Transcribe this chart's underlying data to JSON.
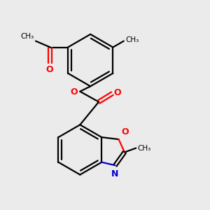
{
  "bg_color": "#ebebeb",
  "bond_color": "#000000",
  "o_color": "#ff0000",
  "n_color": "#0000cc",
  "line_width": 1.6,
  "figsize": [
    3.0,
    3.0
  ],
  "dpi": 100,
  "xlim": [
    0,
    10
  ],
  "ylim": [
    0,
    10
  ]
}
